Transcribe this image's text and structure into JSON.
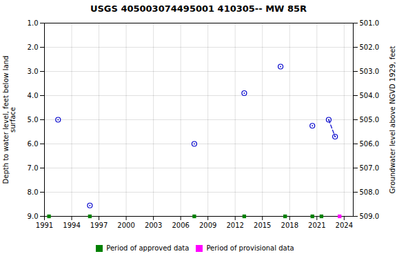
{
  "chart_data": {
    "type": "scatter",
    "title": "USGS 405003074495001 410305-- MW 85R",
    "ylabel": "Depth to water level, feet below land\nsurface",
    "y2label": "Groundwater level above NGVD 1929, feet",
    "xlim": [
      1991,
      2025
    ],
    "xticks": [
      1991,
      1994,
      1997,
      2000,
      2003,
      2006,
      2009,
      2012,
      2015,
      2018,
      2021,
      2024
    ],
    "ylim": [
      9.0,
      1.0
    ],
    "yticks": [
      {
        "value": 1.0,
        "label": "1.0"
      },
      {
        "value": 2.0,
        "label": "2.0"
      },
      {
        "value": 3.0,
        "label": "3.0"
      },
      {
        "value": 4.0,
        "label": "4.0"
      },
      {
        "value": 5.0,
        "label": "5.0"
      },
      {
        "value": 6.0,
        "label": "6.0"
      },
      {
        "value": 7.0,
        "label": "7.0"
      },
      {
        "value": 8.0,
        "label": "8.0"
      },
      {
        "value": 9.0,
        "label": "9.0"
      }
    ],
    "y2lim": [
      509.0,
      501.0
    ],
    "y2ticks": [
      {
        "value": 509.0,
        "label": "509.0"
      },
      {
        "value": 508.0,
        "label": "508.0"
      },
      {
        "value": 507.0,
        "label": "507.0"
      },
      {
        "value": 506.0,
        "label": "506.0"
      },
      {
        "value": 505.0,
        "label": "505.0"
      },
      {
        "value": 504.0,
        "label": "504.0"
      },
      {
        "value": 503.0,
        "label": "503.0"
      },
      {
        "value": 502.0,
        "label": "502.0"
      },
      {
        "value": 501.0,
        "label": "501.0"
      }
    ],
    "grid": true,
    "legend": "bottom",
    "series": [
      {
        "type": "scatter",
        "marker": "circle",
        "color": "#0000cc",
        "x": [
          1992.5,
          1996.0,
          2007.5,
          2013.0,
          2017.0,
          2020.5,
          2022.3,
          2023.0
        ],
        "values": [
          5.0,
          8.55,
          6.0,
          3.9,
          2.8,
          5.25,
          5.0,
          5.7
        ]
      },
      {
        "type": "line",
        "line_style": "dashed",
        "color": "#0000cc",
        "x": [
          2022.3,
          2023.0
        ],
        "values": [
          5.0,
          5.7
        ]
      },
      {
        "name": "Period of approved data",
        "type": "scatter",
        "marker": "square",
        "color": "#008000",
        "x": [
          1991.5,
          1996.0,
          2007.5,
          2013.0,
          2017.5,
          2020.5,
          2021.5
        ],
        "values": [
          9.0,
          9.0,
          9.0,
          9.0,
          9.0,
          9.0,
          9.0
        ]
      },
      {
        "name": "Period of provisional data",
        "type": "scatter",
        "marker": "square",
        "color": "#ff00ff",
        "x": [
          2023.5
        ],
        "values": [
          9.0
        ]
      }
    ]
  }
}
